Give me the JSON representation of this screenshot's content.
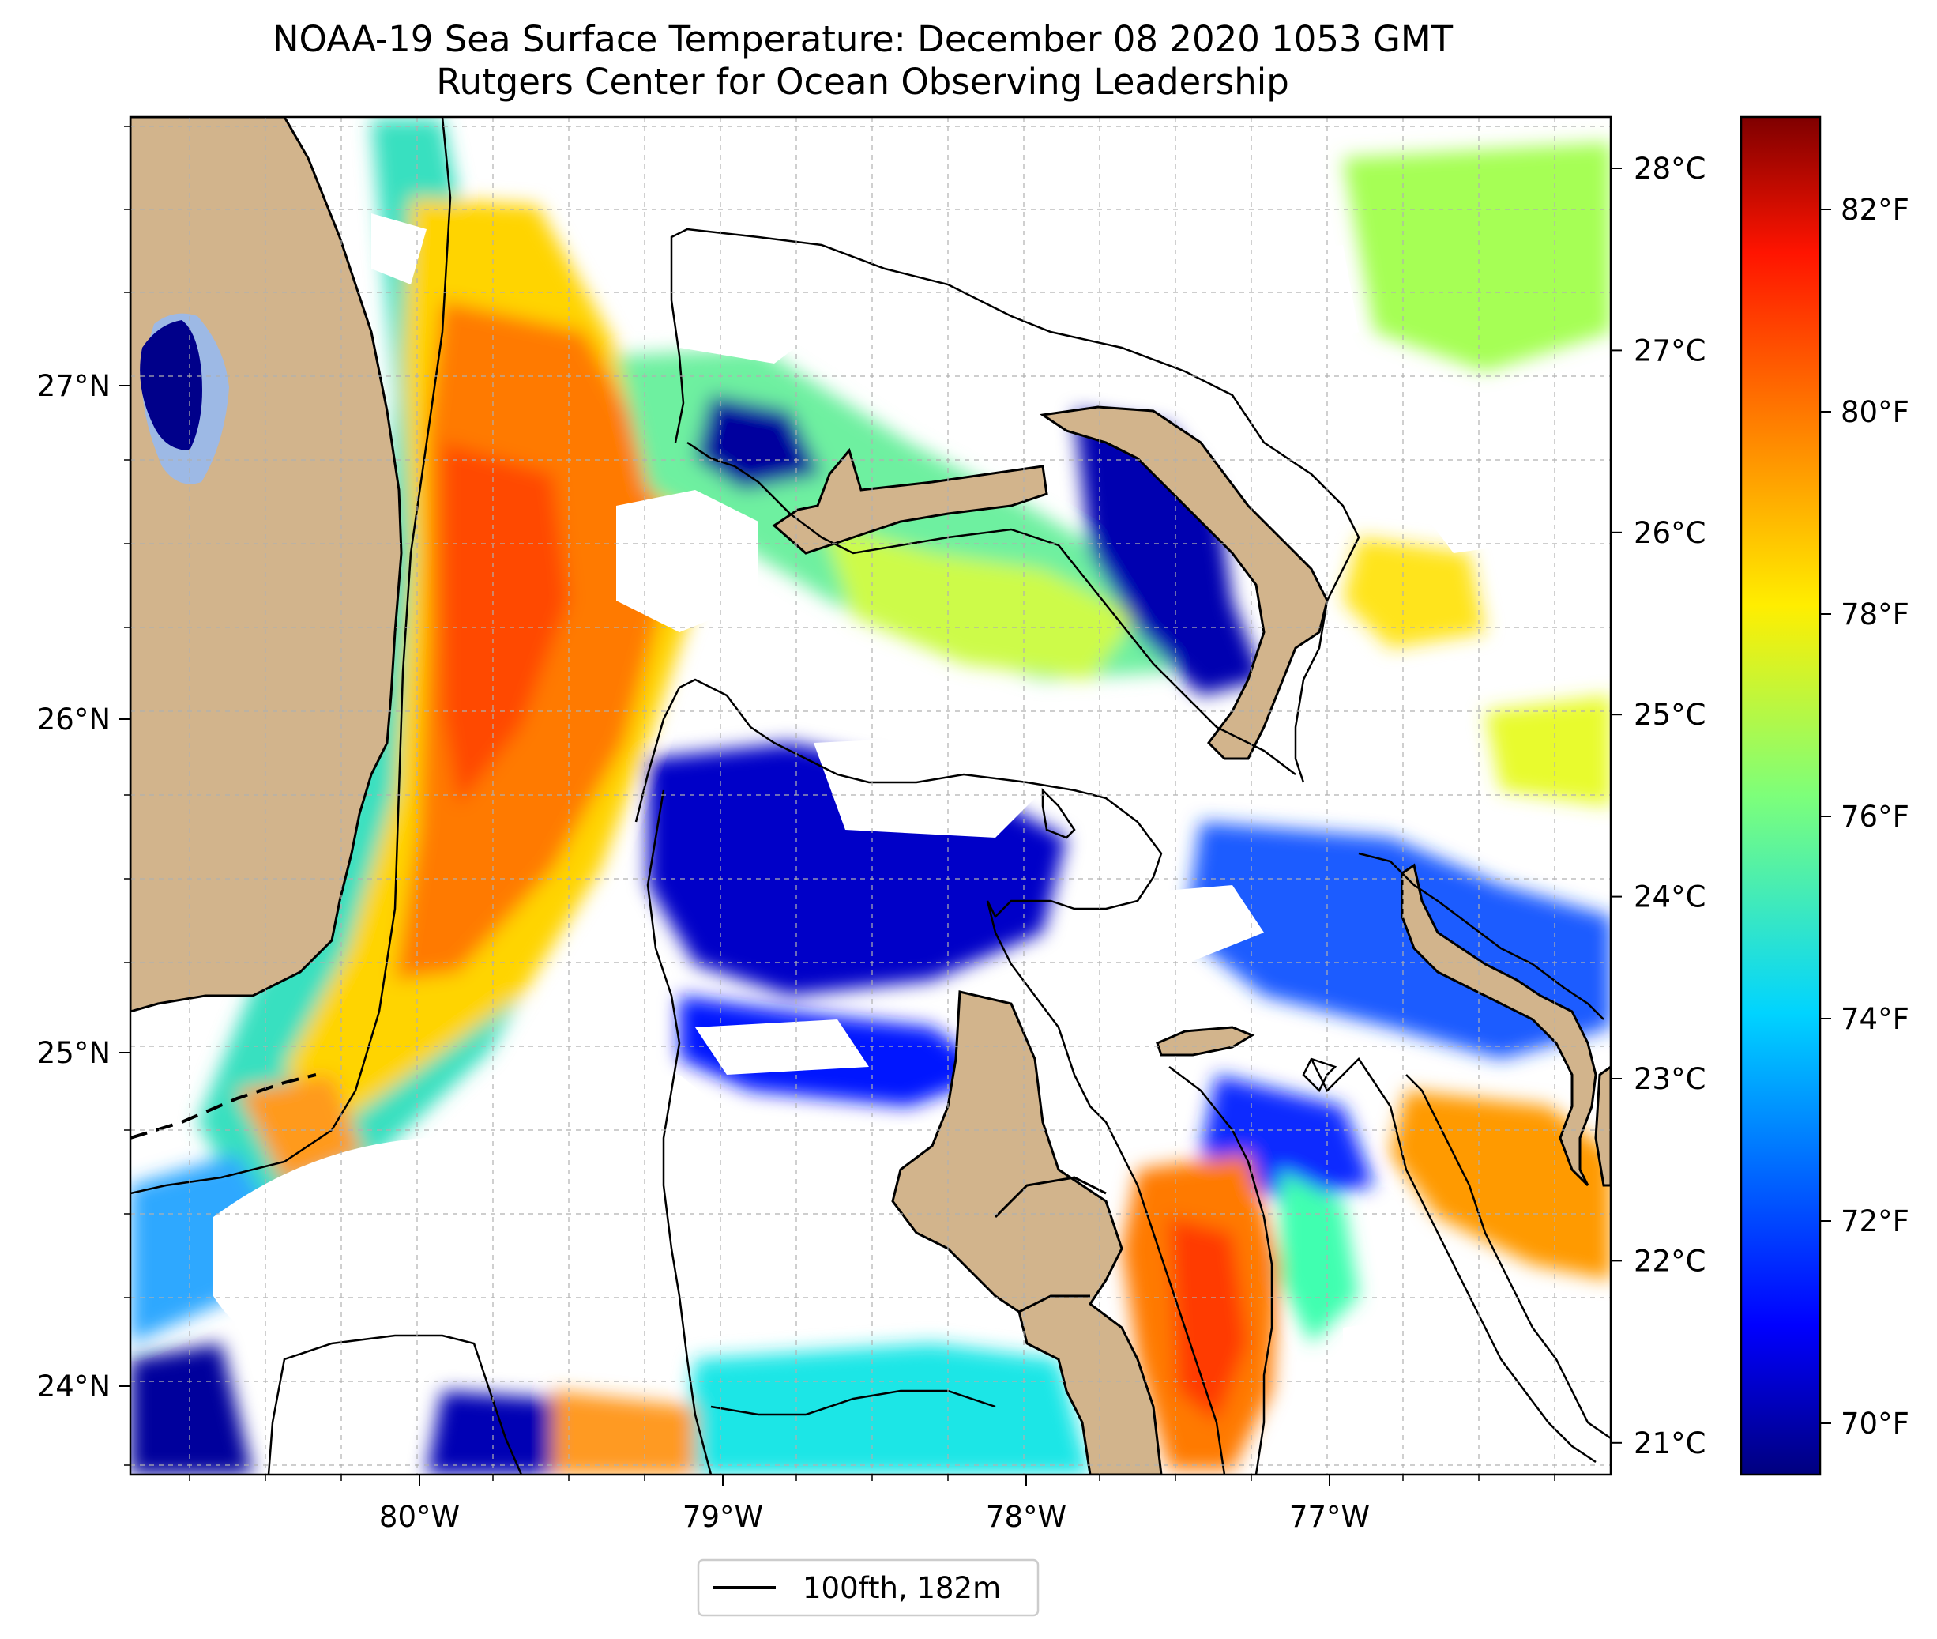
{
  "title": {
    "line1": "NOAA-19 Sea Surface Temperature: December 08 2020 1053 GMT",
    "line2": "Rutgers Center for Ocean Observing Leadership"
  },
  "axes": {
    "lon_ticks": [
      {
        "value": -80,
        "label": "80°W"
      },
      {
        "value": -79,
        "label": "79°W"
      },
      {
        "value": -78,
        "label": "78°W"
      },
      {
        "value": -77,
        "label": "77°W"
      }
    ],
    "lat_ticks": [
      {
        "value": 27,
        "label": "27°N"
      },
      {
        "value": 26,
        "label": "26°N"
      },
      {
        "value": 25,
        "label": "25°N"
      },
      {
        "value": 24,
        "label": "24°N"
      }
    ]
  },
  "colorbar": {
    "celsius_ticks": [
      "28°C",
      "27°C",
      "26°C",
      "25°C",
      "24°C",
      "23°C",
      "22°C",
      "21°C"
    ],
    "fahrenheit_ticks": [
      "82°F",
      "80°F",
      "78°F",
      "76°F",
      "74°F",
      "72°F",
      "70°F"
    ],
    "colors": [
      "#00007f",
      "#0000ff",
      "#007fff",
      "#00e5ff",
      "#4cff99",
      "#b2ff4c",
      "#ffe500",
      "#ff7f00",
      "#ff1a00",
      "#7f0000"
    ]
  },
  "legend": {
    "label": "100fth, 182m"
  },
  "colors": {
    "land": "#d2b48c",
    "lake": "#9db9e5",
    "gridline": "#b0b0b0"
  }
}
